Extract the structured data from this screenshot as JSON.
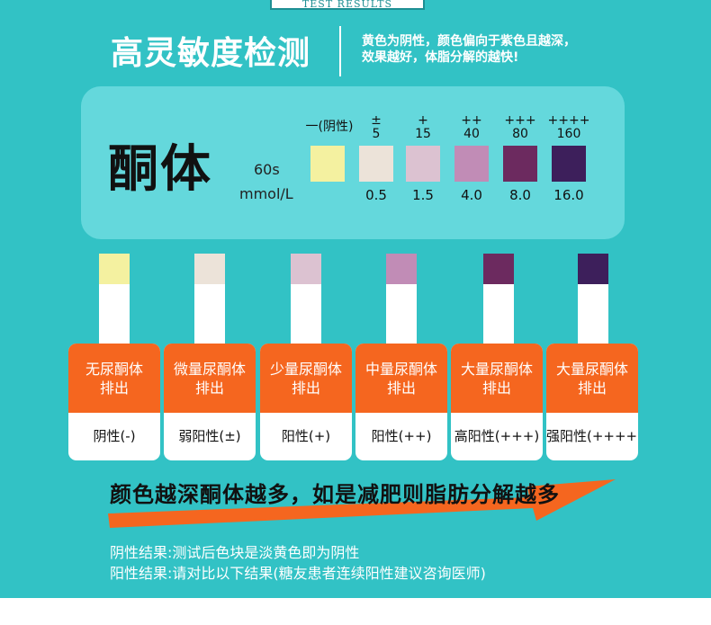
{
  "header": {
    "tab_text": "TEST RESULTS",
    "title": "高灵敏度检测",
    "note_line1": "黄色为阴性，颜色偏向于紫色且越深，",
    "note_line2": "效果越好，体脂分解的越快!"
  },
  "panel": {
    "analyte": "酮体",
    "time_unit": "60s",
    "conc_unit": "mmol/L",
    "scale": [
      {
        "label_top": "",
        "label_bottom": "一(阴性)",
        "value": "",
        "color": "#f4f1a0"
      },
      {
        "label_top": "±",
        "label_bottom": "5",
        "value": "0.5",
        "color": "#ece3d9"
      },
      {
        "label_top": "+",
        "label_bottom": "15",
        "value": "1.5",
        "color": "#dcc2d1"
      },
      {
        "label_top": "++",
        "label_bottom": "40",
        "value": "4.0",
        "color": "#c18cb6"
      },
      {
        "label_top": "+++",
        "label_bottom": "80",
        "value": "8.0",
        "color": "#6c2a5f"
      },
      {
        "label_top": "++++",
        "label_bottom": "160",
        "value": "16.0",
        "color": "#3d1f5b"
      }
    ]
  },
  "results": [
    {
      "line1": "无尿酮体",
      "line2": "排出",
      "result": "阴性(-)",
      "color": "#f4f1a0"
    },
    {
      "line1": "微量尿酮体",
      "line2": "排出",
      "result": "弱阳性(±)",
      "color": "#ece3d9"
    },
    {
      "line1": "少量尿酮体",
      "line2": "排出",
      "result": "阳性(+)",
      "color": "#dcc2d1"
    },
    {
      "line1": "中量尿酮体",
      "line2": "排出",
      "result": "阳性(++)",
      "color": "#c18cb6"
    },
    {
      "line1": "大量尿酮体",
      "line2": "排出",
      "result": "高阳性(+++)",
      "color": "#6c2a5f"
    },
    {
      "line1": "大量尿酮体",
      "line2": "排出",
      "result": "强阳性(++++)",
      "color": "#3d1f5b"
    }
  ],
  "conclusion": "颜色越深酮体越多，如是减肥则脂肪分解越多",
  "notes": {
    "negative": "阴性结果:测试后色块是淡黄色即为阴性",
    "positive": "阳性结果:请对比以下结果(糖友患者连续阳性建议咨询医师)"
  },
  "colors": {
    "background": "#32c2c5",
    "panel": "#64d8dc",
    "accent_orange": "#f5661f"
  }
}
